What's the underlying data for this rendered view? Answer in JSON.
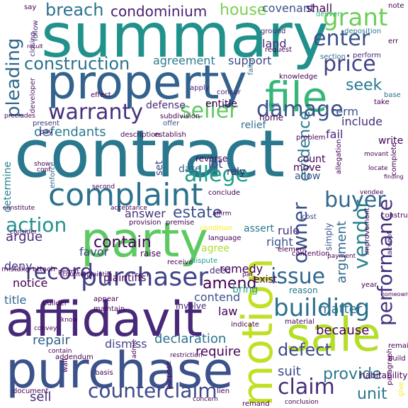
{
  "palette": {
    "purple": "#440154",
    "indigo": "#482878",
    "blue": "#3e4a89",
    "steel": "#31688e",
    "teal": "#26828e",
    "sea": "#1f9e89",
    "green": "#35b779",
    "lime": "#6ece58",
    "chartreuse": "#b5de2b",
    "yellow": "#fde725"
  },
  "words": [
    {
      "text": "contract",
      "color": "#2a788e"
    },
    {
      "text": "summary",
      "color": "#21918c"
    },
    {
      "text": "property",
      "color": "#33638d"
    },
    {
      "text": "purchase",
      "color": "#3b528b"
    },
    {
      "text": "affidavit",
      "color": "#482878"
    },
    {
      "text": "party",
      "color": "#5ec962"
    },
    {
      "text": "sale",
      "color": "#b5de2b"
    },
    {
      "text": "motion",
      "color": "#c2df23"
    },
    {
      "text": "file",
      "color": "#35b779"
    },
    {
      "text": "complaint",
      "color": "#2c728e"
    },
    {
      "text": "building",
      "color": "#2d708e"
    },
    {
      "text": "purchaser",
      "color": "#414487"
    },
    {
      "text": "seller",
      "color": "#5ec962"
    },
    {
      "text": "counterclaim",
      "color": "#3e4989"
    },
    {
      "text": "warranty",
      "color": "#46327e"
    },
    {
      "text": "damage",
      "color": "#3b528b"
    },
    {
      "text": "claim",
      "color": "#472d7b"
    },
    {
      "text": "issue",
      "color": "#31688e"
    },
    {
      "text": "owner",
      "color": "#3b528b"
    },
    {
      "text": "grant",
      "color": "#6ece58"
    },
    {
      "text": "enter",
      "color": "#3b528b"
    },
    {
      "text": "price",
      "color": "#414487"
    },
    {
      "text": "allege",
      "color": "#1fa187"
    },
    {
      "text": "buyer",
      "color": "#31688e"
    },
    {
      "text": "vendor",
      "color": "#26828e"
    },
    {
      "text": "record",
      "color": "#443983"
    },
    {
      "text": "action",
      "color": "#21918c"
    },
    {
      "text": "performance",
      "color": "#46327e"
    },
    {
      "text": "evidence",
      "color": "#2a788e"
    },
    {
      "text": "pleading",
      "color": "#31688e"
    },
    {
      "text": "construction",
      "color": "#2c728e"
    },
    {
      "text": "breach",
      "color": "#2c728e"
    },
    {
      "text": "condominium",
      "color": "#481f70"
    },
    {
      "text": "house",
      "color": "#7ad151"
    },
    {
      "text": "covenant",
      "color": "#3b528b"
    },
    {
      "text": "shall",
      "color": "#440154"
    },
    {
      "text": "land",
      "color": "#482878"
    },
    {
      "text": "defendants",
      "color": "#2a788e"
    },
    {
      "text": "estate",
      "color": "#3b528b"
    },
    {
      "text": "contain",
      "color": "#440154"
    },
    {
      "text": "defect",
      "color": "#3e4989"
    },
    {
      "text": "provide",
      "color": "#2a788e"
    },
    {
      "text": "unit",
      "color": "#2a788e"
    },
    {
      "text": "amend",
      "color": "#440154"
    },
    {
      "text": "repair",
      "color": "#33638d"
    },
    {
      "text": "declaration",
      "color": "#2c728e"
    },
    {
      "text": "seek",
      "color": "#2a788e"
    },
    {
      "text": "argument",
      "color": "#31688e"
    },
    {
      "text": "agreement",
      "color": "#287c8e"
    },
    {
      "text": "support",
      "color": "#3e4989"
    },
    {
      "text": "argue",
      "color": "#482878"
    },
    {
      "text": "deny",
      "color": "#443983"
    },
    {
      "text": "notice",
      "color": "#440154"
    },
    {
      "text": "favor",
      "color": "#414487"
    },
    {
      "text": "answer",
      "color": "#46327e"
    },
    {
      "text": "contend",
      "color": "#3b528b"
    },
    {
      "text": "law",
      "color": "#440154"
    },
    {
      "text": "title",
      "color": "#31688e"
    },
    {
      "text": "dismiss",
      "color": "#414487"
    },
    {
      "text": "require",
      "color": "#440154"
    },
    {
      "text": "sell",
      "color": "#472d7b"
    },
    {
      "text": "suit",
      "color": "#3e4989"
    },
    {
      "text": "matter",
      "color": "#2c728e"
    },
    {
      "text": "because",
      "color": "#440154"
    },
    {
      "text": "remedy",
      "color": "#440154"
    },
    {
      "text": "rule",
      "color": "#46327e"
    },
    {
      "text": "right",
      "color": "#3b528b"
    },
    {
      "text": "assert",
      "color": "#2a788e"
    },
    {
      "text": "entitle",
      "color": "#440154"
    },
    {
      "text": "defense",
      "color": "#482878"
    },
    {
      "text": "term",
      "color": "#3b528b"
    },
    {
      "text": "include",
      "color": "#472d7b"
    },
    {
      "text": "fail",
      "color": "#482878"
    },
    {
      "text": "date",
      "color": "#31688e"
    },
    {
      "text": "lot",
      "color": "#414487"
    },
    {
      "text": "set",
      "color": "#414487"
    },
    {
      "text": "determine",
      "color": "#26828e"
    },
    {
      "text": "agree",
      "color": "#addc30"
    },
    {
      "text": "plaintiffs'",
      "color": "#440154"
    },
    {
      "text": "exist",
      "color": "#440154"
    },
    {
      "text": "bring",
      "color": "#22a884"
    },
    {
      "text": "count",
      "color": "#440154"
    },
    {
      "text": "move",
      "color": "#440154"
    },
    {
      "text": "allow",
      "color": "#3b528b"
    },
    {
      "text": "deed",
      "color": "#482878"
    },
    {
      "text": "rely",
      "color": "#481f70"
    },
    {
      "text": "relief",
      "color": "#2c728e"
    },
    {
      "text": "home",
      "color": "#440154"
    },
    {
      "text": "write",
      "color": "#440154"
    },
    {
      "text": "deliver",
      "color": "#35b779"
    },
    {
      "text": "ground",
      "color": "#482878"
    },
    {
      "text": "request",
      "color": "#440154"
    },
    {
      "text": "deposition",
      "color": "#2a788e"
    },
    {
      "text": "failure",
      "color": "#2c728e"
    },
    {
      "text": "section",
      "color": "#31688e"
    },
    {
      "text": "perform",
      "color": "#472d7b"
    },
    {
      "text": "knowledge",
      "color": "#440154"
    },
    {
      "text": "apply",
      "color": "#481f70"
    },
    {
      "text": "sign",
      "color": "#2c728e"
    },
    {
      "text": "closing",
      "color": "#472d7b"
    },
    {
      "text": "follow",
      "color": "#481f70"
    },
    {
      "text": "say",
      "color": "#440154"
    },
    {
      "text": "establish",
      "color": "#440154"
    },
    {
      "text": "description",
      "color": "#440154"
    },
    {
      "text": "subdivision",
      "color": "#440154"
    },
    {
      "text": "offer",
      "color": "#3b528b"
    },
    {
      "text": "pay",
      "color": "#440154"
    },
    {
      "text": "present",
      "color": "#46327e"
    },
    {
      "text": "precludes",
      "color": "#440154"
    },
    {
      "text": "base",
      "color": "#2c728e"
    },
    {
      "text": "take",
      "color": "#440154"
    },
    {
      "text": "concur",
      "color": "#481f70"
    },
    {
      "text": "mistake",
      "color": "#440154"
    },
    {
      "text": "attach",
      "color": "#440154"
    },
    {
      "text": "consider",
      "color": "#440154"
    },
    {
      "text": "enforce",
      "color": "#31688e"
    },
    {
      "text": "raise",
      "color": "#440154"
    },
    {
      "text": "receive",
      "color": "#440154"
    },
    {
      "text": "dispute",
      "color": "#1f9e89"
    },
    {
      "text": "involve",
      "color": "#482878"
    },
    {
      "text": "reason",
      "color": "#2a788e"
    },
    {
      "text": "simply",
      "color": "#3b528b"
    },
    {
      "text": "cost",
      "color": "#3e4989"
    },
    {
      "text": "payment",
      "color": "#440154"
    },
    {
      "text": "improvement",
      "color": "#440154"
    },
    {
      "text": "year",
      "color": "#440154"
    },
    {
      "text": "accept",
      "color": "#482878"
    },
    {
      "text": "vendee",
      "color": "#440154"
    },
    {
      "text": "homeowner",
      "color": "#440154"
    },
    {
      "text": "habitability",
      "color": "#440154"
    },
    {
      "text": "material",
      "color": "#440154"
    },
    {
      "text": "remain",
      "color": "#440154"
    },
    {
      "text": "lien",
      "color": "#440154"
    },
    {
      "text": "basis",
      "color": "#440154"
    },
    {
      "text": "document",
      "color": "#440154"
    },
    {
      "text": "remand",
      "color": "#440154"
    },
    {
      "text": "premise",
      "color": "#440154"
    },
    {
      "text": "condition",
      "color": "#fde725"
    },
    {
      "text": "language",
      "color": "#440154"
    },
    {
      "text": "conclude",
      "color": "#440154"
    },
    {
      "text": "affirm",
      "color": "#440154"
    },
    {
      "text": "provision",
      "color": "#440154"
    },
    {
      "text": "reverse",
      "color": "#440154"
    },
    {
      "text": "problem",
      "color": "#440154"
    },
    {
      "text": "allegation",
      "color": "#440154"
    },
    {
      "text": "finding",
      "color": "#440154"
    },
    {
      "text": "complete",
      "color": "#440154"
    },
    {
      "text": "construct",
      "color": "#440154"
    },
    {
      "text": "contention",
      "color": "#440154"
    },
    {
      "text": "element",
      "color": "#440154"
    },
    {
      "text": "indicate",
      "color": "#440154"
    },
    {
      "text": "developer",
      "color": "#481f70"
    },
    {
      "text": "effect",
      "color": "#440154"
    },
    {
      "text": "note",
      "color": "#440154"
    },
    {
      "text": "err",
      "color": "#440154"
    },
    {
      "text": "result",
      "color": "#440154"
    },
    {
      "text": "appear",
      "color": "#440154"
    },
    {
      "text": "maintain",
      "color": "#440154"
    },
    {
      "text": "builder",
      "color": "#440154"
    },
    {
      "text": "addendum",
      "color": "#440154"
    },
    {
      "text": "build",
      "color": "#440154"
    },
    {
      "text": "paragraph",
      "color": "#440154"
    },
    {
      "text": "purpose",
      "color": "#440154"
    },
    {
      "text": "wall",
      "color": "#440154"
    },
    {
      "text": "know",
      "color": "#440154"
    },
    {
      "text": "convey",
      "color": "#440154"
    },
    {
      "text": "acceptance",
      "color": "#440154"
    },
    {
      "text": "permit",
      "color": "#440154"
    },
    {
      "text": "counterplaintiff",
      "color": "#440154"
    },
    {
      "text": "give",
      "color": "#fde725"
    },
    {
      "text": "conclusion",
      "color": "#440154"
    },
    {
      "text": "concern",
      "color": "#440154"
    },
    {
      "text": "admit",
      "color": "#440154"
    },
    {
      "text": "par",
      "color": "#440154"
    },
    {
      "text": "restriction",
      "color": "#440154"
    },
    {
      "text": "contain",
      "color": "#440154"
    },
    {
      "text": "locate",
      "color": "#440154"
    },
    {
      "text": "movant",
      "color": "#440154"
    },
    {
      "text": "constitute",
      "color": "#440154"
    },
    {
      "text": "second",
      "color": "#440154"
    },
    {
      "text": "show",
      "color": "#440154"
    },
    {
      "text": "conf",
      "color": "#440154"
    }
  ]
}
